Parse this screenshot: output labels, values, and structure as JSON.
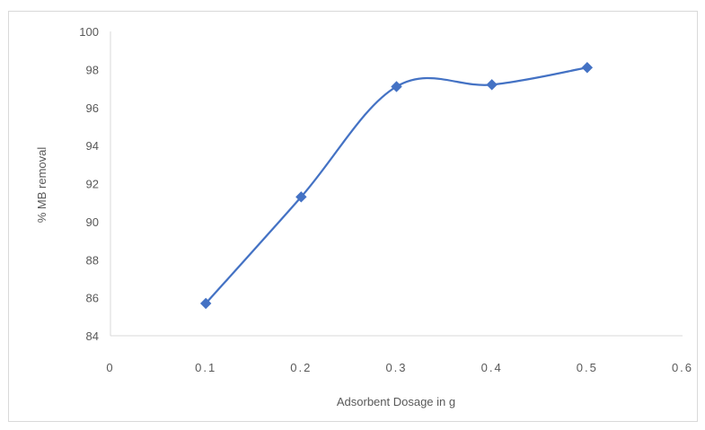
{
  "chart_data": {
    "type": "scatter",
    "line_style": "smooth",
    "marker": "diamond",
    "title": "",
    "xlabel": "Adsorbent Dosage in g",
    "ylabel": "% MB removal",
    "xlim": [
      0,
      0.6
    ],
    "ylim": [
      84,
      100
    ],
    "x_ticks": [
      0,
      0.1,
      0.2,
      0.3,
      0.4,
      0.5,
      0.6
    ],
    "x_tick_labels": [
      "0",
      "0.1",
      "0.2",
      "0.3",
      "0.4",
      "0.5",
      "0.6"
    ],
    "y_ticks": [
      84,
      86,
      88,
      90,
      92,
      94,
      96,
      98,
      100
    ],
    "y_tick_labels": [
      "84",
      "86",
      "88",
      "90",
      "92",
      "94",
      "96",
      "98",
      "100"
    ],
    "grid": false,
    "legend": "none",
    "series": [
      {
        "x": [
          0.1,
          0.2,
          0.3,
          0.4,
          0.5
        ],
        "y": [
          85.7,
          91.3,
          97.1,
          97.2,
          98.1
        ],
        "color": "#4472c4"
      }
    ]
  }
}
